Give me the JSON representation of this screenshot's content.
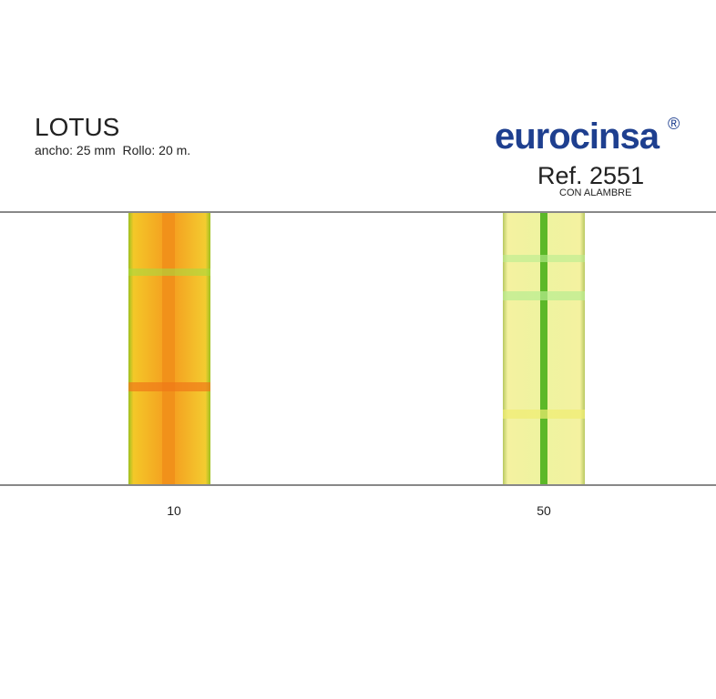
{
  "header": {
    "title": "LOTUS",
    "subtitle": "ancho: 25 mm  Rollo: 20 m.",
    "brand": "eurocinsa",
    "brand_mark": "®",
    "reference": "Ref. 2551",
    "note": "CON ALAMBRE"
  },
  "samples": [
    {
      "label": "10"
    },
    {
      "label": "50"
    }
  ]
}
